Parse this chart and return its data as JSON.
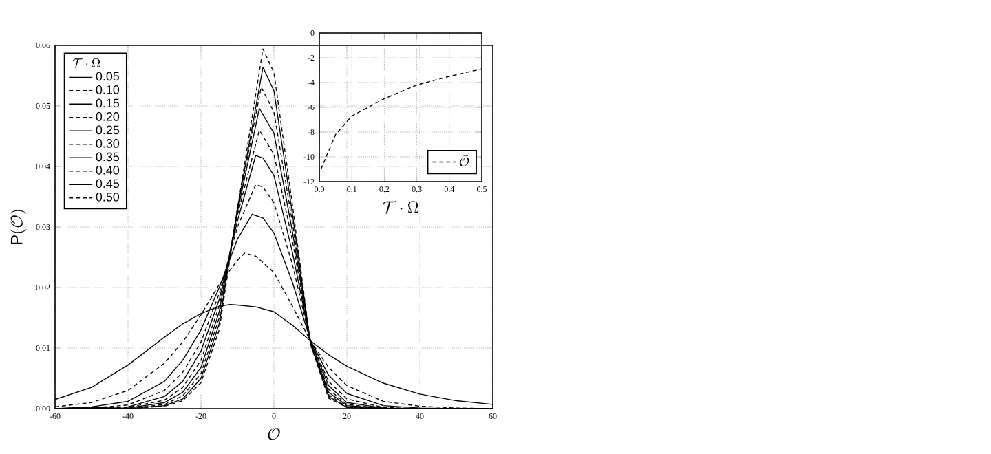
{
  "chart_data": [
    {
      "type": "line",
      "xlabel": "\\mathcal{O}",
      "ylabel": "\\mathrm{P}(\\mathcal{O})",
      "legend_title": "\\mathcal{T}\\cdot\\Omega",
      "grid": true,
      "legend": "top left",
      "xlim": [
        -60,
        60
      ],
      "ylim": [
        0,
        0.06
      ],
      "xticks": [
        -60,
        -40,
        -20,
        0,
        20,
        40,
        60
      ],
      "yticks": [
        {
          "value": 0,
          "label": "0.00"
        },
        {
          "value": 0.01,
          "label": "0.01"
        },
        {
          "value": 0.02,
          "label": "0.02"
        },
        {
          "value": 0.03,
          "label": "0.03"
        },
        {
          "value": 0.04,
          "label": "0.04"
        },
        {
          "value": 0.05,
          "label": "0.05"
        },
        {
          "value": 0.06,
          "label": "0.06"
        }
      ],
      "series": [
        {
          "name": "0.05",
          "color": "#000000",
          "line_style": "solid",
          "x": [
            -60,
            -50,
            -40,
            -30,
            -25,
            -20,
            -15,
            -12,
            -10,
            -5,
            0,
            5,
            10,
            15,
            20,
            30,
            40,
            50,
            60
          ],
          "values": [
            0.0015,
            0.0035,
            0.0072,
            0.0118,
            0.014,
            0.0157,
            0.0169,
            0.0172,
            0.0171,
            0.0168,
            0.016,
            0.0138,
            0.0112,
            0.0089,
            0.007,
            0.0042,
            0.0024,
            0.0013,
            0.0007
          ]
        },
        {
          "name": "0.10",
          "color": "#000000",
          "line_style": "dashed",
          "x": [
            -60,
            -50,
            -40,
            -30,
            -25,
            -20,
            -15,
            -10,
            -8,
            -5,
            0,
            5,
            10,
            15,
            20,
            30,
            40,
            50,
            60
          ],
          "values": [
            0.0003,
            0.001,
            0.003,
            0.0075,
            0.011,
            0.0155,
            0.0205,
            0.0245,
            0.0257,
            0.0252,
            0.0225,
            0.017,
            0.0112,
            0.0068,
            0.0038,
            0.0012,
            0.0004,
            0.0001,
            0
          ]
        },
        {
          "name": "0.15",
          "color": "#000000",
          "line_style": "solid",
          "x": [
            -60,
            -50,
            -40,
            -30,
            -25,
            -20,
            -15,
            -10,
            -6,
            -3,
            0,
            5,
            10,
            15,
            20,
            30,
            40,
            50,
            60
          ],
          "values": [
            0,
            0.0003,
            0.0012,
            0.0045,
            0.008,
            0.013,
            0.02,
            0.028,
            0.0321,
            0.0315,
            0.029,
            0.021,
            0.0113,
            0.0055,
            0.0025,
            0.0005,
            0.0001,
            0,
            0
          ]
        },
        {
          "name": "0.20",
          "color": "#000000",
          "line_style": "dashed",
          "x": [
            -60,
            -50,
            -40,
            -30,
            -25,
            -20,
            -15,
            -10,
            -5,
            -3,
            0,
            5,
            10,
            15,
            20,
            30,
            40,
            60
          ],
          "values": [
            0,
            0.0001,
            0.0006,
            0.003,
            0.006,
            0.011,
            0.019,
            0.03,
            0.037,
            0.0366,
            0.034,
            0.024,
            0.0112,
            0.0045,
            0.0016,
            0.0002,
            0,
            0
          ]
        },
        {
          "name": "0.25",
          "color": "#000000",
          "line_style": "solid",
          "x": [
            -60,
            -40,
            -30,
            -25,
            -20,
            -15,
            -10,
            -5,
            -3,
            0,
            5,
            10,
            15,
            20,
            30,
            40,
            60
          ],
          "values": [
            0,
            0.0003,
            0.002,
            0.0045,
            0.0095,
            0.018,
            0.031,
            0.0418,
            0.0414,
            0.0385,
            0.026,
            0.0112,
            0.0038,
            0.001,
            0.0001,
            0,
            0
          ]
        },
        {
          "name": "0.30",
          "color": "#000000",
          "line_style": "dashed",
          "x": [
            -60,
            -40,
            -30,
            -25,
            -20,
            -15,
            -10,
            -4,
            0,
            5,
            10,
            15,
            20,
            30,
            60
          ],
          "values": [
            0,
            0.0002,
            0.0014,
            0.0035,
            0.008,
            0.017,
            0.032,
            0.046,
            0.042,
            0.028,
            0.011,
            0.0032,
            0.0007,
            0,
            0
          ]
        },
        {
          "name": "0.35",
          "color": "#000000",
          "line_style": "solid",
          "x": [
            -60,
            -40,
            -30,
            -25,
            -20,
            -15,
            -10,
            -4,
            0,
            5,
            10,
            15,
            20,
            30,
            60
          ],
          "values": [
            0,
            0.0001,
            0.001,
            0.0027,
            0.0068,
            0.016,
            0.0325,
            0.0496,
            0.0455,
            0.0295,
            0.011,
            0.0027,
            0.0005,
            0,
            0
          ]
        },
        {
          "name": "0.40",
          "color": "#000000",
          "line_style": "dashed",
          "x": [
            -60,
            -40,
            -30,
            -25,
            -20,
            -15,
            -10,
            -3.5,
            0,
            5,
            10,
            15,
            20,
            30,
            60
          ],
          "values": [
            0,
            0,
            0.0007,
            0.0021,
            0.0058,
            0.015,
            0.033,
            0.0531,
            0.049,
            0.031,
            0.0109,
            0.0023,
            0.0003,
            0,
            0
          ]
        },
        {
          "name": "0.45",
          "color": "#000000",
          "line_style": "solid",
          "x": [
            -60,
            -40,
            -30,
            -25,
            -20,
            -15,
            -10,
            -3,
            0,
            5,
            10,
            15,
            20,
            30,
            60
          ],
          "values": [
            0,
            0,
            0.0005,
            0.0016,
            0.005,
            0.014,
            0.033,
            0.0564,
            0.0525,
            0.0325,
            0.0108,
            0.002,
            0.0002,
            0,
            0
          ]
        },
        {
          "name": "0.50",
          "color": "#000000",
          "line_style": "dashed",
          "x": [
            -60,
            -40,
            -30,
            -25,
            -20,
            -15,
            -10,
            -3,
            0,
            5,
            10,
            15,
            20,
            30,
            60
          ],
          "values": [
            0,
            0,
            0.0004,
            0.0013,
            0.0043,
            0.013,
            0.033,
            0.0594,
            0.0555,
            0.034,
            0.0107,
            0.0017,
            0.0002,
            0,
            0
          ]
        }
      ]
    },
    {
      "type": "line",
      "xlabel": "\\mathcal{T}\\cdot\\Omega",
      "grid": true,
      "legend": "bottom right",
      "xlim": [
        0,
        0.5
      ],
      "ylim": [
        -12,
        0
      ],
      "xticks": [
        {
          "value": 0,
          "label": "0.0"
        },
        0.1,
        0.2,
        0.3,
        0.4,
        0.5
      ],
      "yticks": [
        -12,
        -10,
        -8,
        -6,
        -4,
        -2,
        0
      ],
      "series": [
        {
          "name": "\\bar{\\mathcal{O}}",
          "color": "#000000",
          "line_style": "dashed",
          "x": [
            0.005,
            0.05,
            0.1,
            0.15,
            0.2,
            0.3,
            0.4,
            0.5
          ],
          "values": [
            -11,
            -8.2,
            -6.7,
            -6.0,
            -5.3,
            -4.2,
            -3.5,
            -2.9
          ]
        }
      ]
    }
  ]
}
